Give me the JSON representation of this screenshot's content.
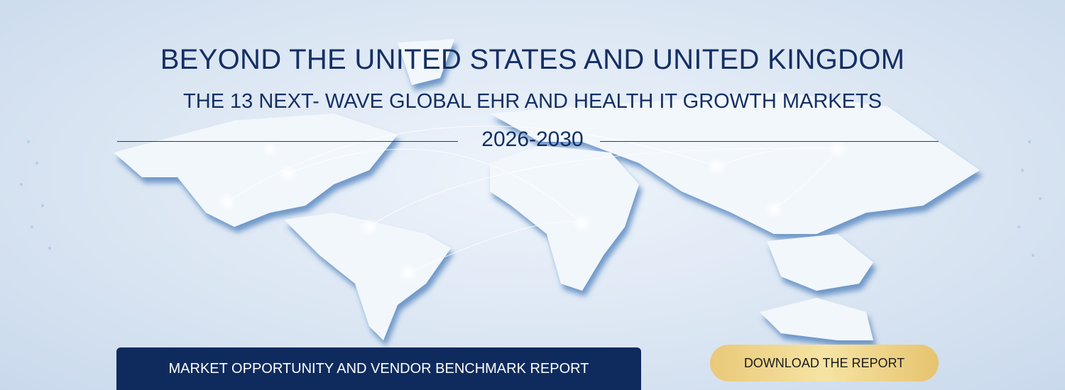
{
  "banner": {
    "title": "BEYOND THE UNITED STATES AND UNITED KINGDOM",
    "subtitle": "THE 13 NEXT- WAVE GLOBAL EHR AND HEALTH IT GROWTH MARKETS",
    "years": "2026-2030",
    "report_label": "MARKET OPPORTUNITY AND VENDOR BENCHMARK REPORT",
    "button": "DOWNLOAD THE REPORT"
  }
}
